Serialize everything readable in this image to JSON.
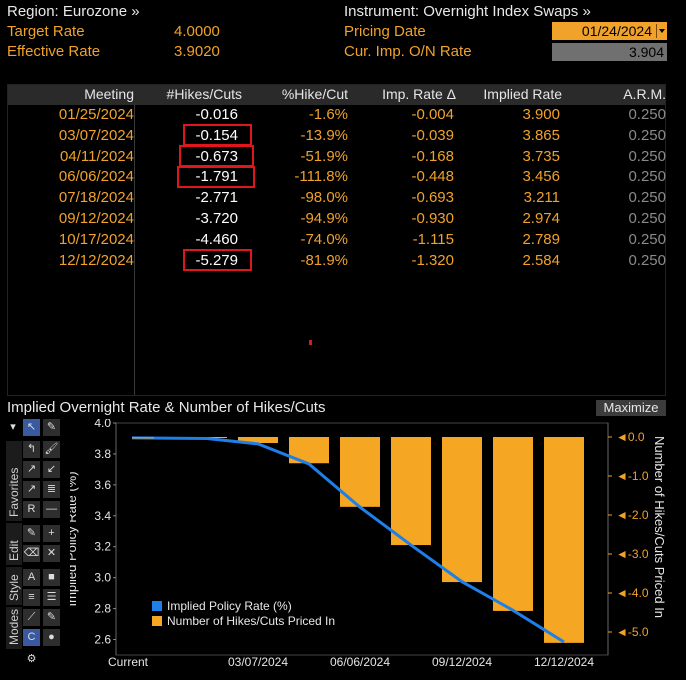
{
  "header": {
    "region_label": "Region: Eurozone »",
    "target_rate_label": "Target Rate",
    "target_rate_value": "4.0000",
    "effective_rate_label": "Effective Rate",
    "effective_rate_value": "3.9020",
    "instrument_label": "Instrument: Overnight Index Swaps »",
    "pricing_date_label": "Pricing Date",
    "pricing_date_value": "01/24/2024",
    "cur_imp_label": "Cur. Imp. O/N Rate",
    "cur_imp_value": "3.904"
  },
  "table": {
    "headers": [
      "Meeting",
      "#Hikes/Cuts",
      "%Hike/Cut",
      "Imp. Rate Δ",
      "Implied Rate",
      "A.R.M."
    ],
    "rows": [
      {
        "meeting": "01/25/2024",
        "hikes": "-0.016",
        "pct": "-1.6%",
        "imp": "-0.004",
        "rate": "3.900",
        "arm": "0.250"
      },
      {
        "meeting": "03/07/2024",
        "hikes": "-0.154",
        "pct": "-13.9%",
        "imp": "-0.039",
        "rate": "3.865",
        "arm": "0.250"
      },
      {
        "meeting": "04/11/2024",
        "hikes": "-0.673",
        "pct": "-51.9%",
        "imp": "-0.168",
        "rate": "3.735",
        "arm": "0.250"
      },
      {
        "meeting": "06/06/2024",
        "hikes": "-1.791",
        "pct": "-111.8%",
        "imp": "-0.448",
        "rate": "3.456",
        "arm": "0.250"
      },
      {
        "meeting": "07/18/2024",
        "hikes": "-2.771",
        "pct": "-98.0%",
        "imp": "-0.693",
        "rate": "3.211",
        "arm": "0.250"
      },
      {
        "meeting": "09/12/2024",
        "hikes": "-3.720",
        "pct": "-94.9%",
        "imp": "-0.930",
        "rate": "2.974",
        "arm": "0.250"
      },
      {
        "meeting": "10/17/2024",
        "hikes": "-4.460",
        "pct": "-74.0%",
        "imp": "-1.115",
        "rate": "2.789",
        "arm": "0.250"
      },
      {
        "meeting": "12/12/2024",
        "hikes": "-5.279",
        "pct": "-81.9%",
        "imp": "-1.320",
        "rate": "2.584",
        "arm": "0.250"
      }
    ]
  },
  "chart_panel": {
    "title": "Implied Overnight Rate & Number of Hikes/Cuts",
    "maximize_label": "Maximize",
    "toolbar_tabs": [
      "Favorites",
      "Edit",
      "Style",
      "Modes"
    ]
  },
  "chart_data": {
    "type": "bar",
    "categories": [
      "Current",
      "01/25/2024",
      "03/07/2024",
      "04/11/2024",
      "06/06/2024",
      "07/18/2024",
      "09/12/2024",
      "10/17/2024",
      "12/12/2024"
    ],
    "x_tick_labels": [
      "Current",
      "03/07/2024",
      "06/06/2024",
      "09/12/2024",
      "12/12/2024"
    ],
    "series": [
      {
        "name": "Implied Policy Rate (%)",
        "type": "line",
        "color": "#1e7fe8",
        "axis": "left",
        "values": [
          3.904,
          3.9,
          3.865,
          3.735,
          3.456,
          3.211,
          2.974,
          2.789,
          2.584
        ]
      },
      {
        "name": "Number of Hikes/Cuts Priced In",
        "type": "bar",
        "color": "#f5a623",
        "axis": "right",
        "values": [
          0,
          -0.016,
          -0.154,
          -0.673,
          -1.791,
          -2.771,
          -3.72,
          -4.46,
          -5.279
        ]
      }
    ],
    "ylabel": "Implied Policy Rate (%)",
    "y2label": "Number of Hikes/Cuts Priced In",
    "ylim": [
      2.5,
      4.0
    ],
    "yticks": [
      "4.0",
      "3.8",
      "3.6",
      "3.4",
      "3.2",
      "3.0",
      "2.8",
      "2.6"
    ],
    "y2lim": [
      -5.4,
      0.3
    ],
    "y2ticks": [
      "0.0",
      "-1.0",
      "-2.0",
      "-3.0",
      "-4.0",
      "-5.0"
    ],
    "legend_placement": "bottom-left"
  }
}
